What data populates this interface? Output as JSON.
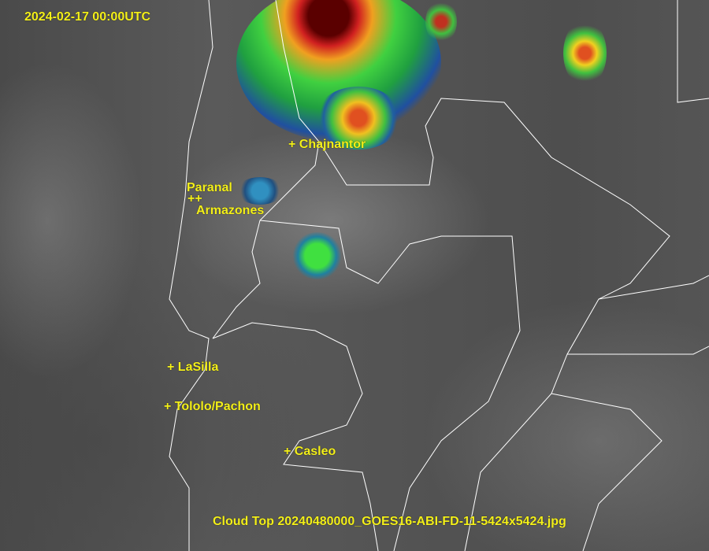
{
  "timestamp": "2024-02-17 00:00UTC",
  "caption": "Cloud Top 20240480000_GOES16-ABI-FD-11-5424x5424.jpg",
  "sites": [
    {
      "label": "+ Chajnantor"
    },
    {
      "label": "Paranal"
    },
    {
      "label": "++"
    },
    {
      "label": "Armazones"
    },
    {
      "label": "+ LaSilla"
    },
    {
      "label": "+ Tololo/Pachon"
    },
    {
      "label": "+ Casleo"
    }
  ],
  "colors": {
    "label": "#f4f01a",
    "borders": "#ffffff"
  }
}
